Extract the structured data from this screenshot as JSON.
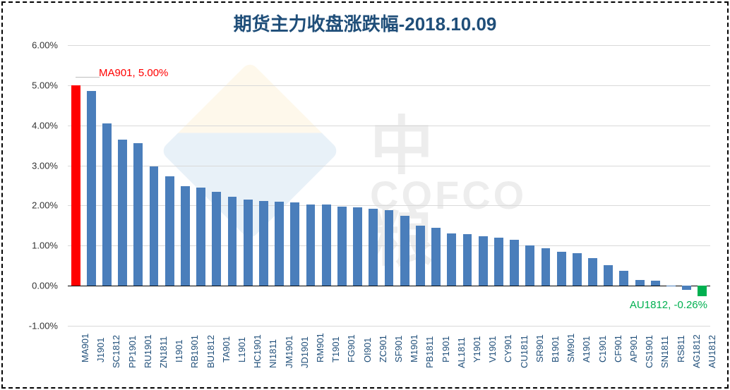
{
  "chart": {
    "type": "bar",
    "title": "期货主力收盘涨跌幅-2018.10.09",
    "title_color": "#1f4e79",
    "title_fontsize": 26,
    "border_style": "dashed",
    "border_color": "#000000",
    "background_color": "#ffffff",
    "grid_color": "#d9d9d9",
    "axis_color": "#000000",
    "ylim": [
      -1.0,
      6.0
    ],
    "ytick_step": 1.0,
    "yticks": [
      "-1.00%",
      "0.00%",
      "1.00%",
      "2.00%",
      "3.00%",
      "4.00%",
      "5.00%",
      "6.00%"
    ],
    "ylabel_fontsize": 13,
    "xlabel_fontsize": 13,
    "xlabel_color": "#1f4e79",
    "xlabel_rotation": -90,
    "bar_width_ratio": 0.58,
    "default_bar_color": "#4a7ebb",
    "highlight_max_color": "#ff0000",
    "highlight_min_color": "#00b050",
    "categories": [
      "MA901",
      "J1901",
      "SC1812",
      "PP1901",
      "RU1901",
      "ZN1811",
      "I1901",
      "RB1901",
      "BU1812",
      "TA901",
      "L1901",
      "HC1901",
      "NI1811",
      "JM1901",
      "JD1901",
      "RM901",
      "T1901",
      "FG901",
      "OI901",
      "ZC901",
      "SF901",
      "M1901",
      "PB1811",
      "P1901",
      "AL1811",
      "Y1901",
      "V1901",
      "CY901",
      "CU1811",
      "SR901",
      "B1901",
      "SM901",
      "A1901",
      "C1901",
      "CF901",
      "AP901",
      "CS1901",
      "SN1811",
      "RS811",
      "AG1812",
      "AU1812"
    ],
    "values": [
      5.0,
      4.85,
      4.05,
      3.65,
      3.55,
      2.98,
      2.72,
      2.48,
      2.45,
      2.35,
      2.22,
      2.15,
      2.12,
      2.1,
      2.08,
      2.03,
      2.02,
      1.98,
      1.95,
      1.92,
      1.88,
      1.75,
      1.5,
      1.45,
      1.3,
      1.28,
      1.24,
      1.2,
      1.14,
      1.0,
      0.93,
      0.85,
      0.82,
      0.68,
      0.52,
      0.38,
      0.15,
      0.13,
      0.0,
      -0.1,
      -0.26
    ],
    "bar_colors": [
      "#ff0000",
      "#4a7ebb",
      "#4a7ebb",
      "#4a7ebb",
      "#4a7ebb",
      "#4a7ebb",
      "#4a7ebb",
      "#4a7ebb",
      "#4a7ebb",
      "#4a7ebb",
      "#4a7ebb",
      "#4a7ebb",
      "#4a7ebb",
      "#4a7ebb",
      "#4a7ebb",
      "#4a7ebb",
      "#4a7ebb",
      "#4a7ebb",
      "#4a7ebb",
      "#4a7ebb",
      "#4a7ebb",
      "#4a7ebb",
      "#4a7ebb",
      "#4a7ebb",
      "#4a7ebb",
      "#4a7ebb",
      "#4a7ebb",
      "#4a7ebb",
      "#4a7ebb",
      "#4a7ebb",
      "#4a7ebb",
      "#4a7ebb",
      "#4a7ebb",
      "#4a7ebb",
      "#4a7ebb",
      "#4a7ebb",
      "#4a7ebb",
      "#4a7ebb",
      "#4a7ebb",
      "#4a7ebb",
      "#00b050"
    ],
    "annotations": {
      "max": {
        "text": "MA901, 5.00%",
        "color": "#ff0000",
        "fontsize": 15
      },
      "min": {
        "text": "AU1812, -0.26%",
        "color": "#00b050",
        "fontsize": 15
      }
    },
    "watermark": {
      "line1": "中粮",
      "line2": "COFCO",
      "opacity": 0.1
    }
  }
}
